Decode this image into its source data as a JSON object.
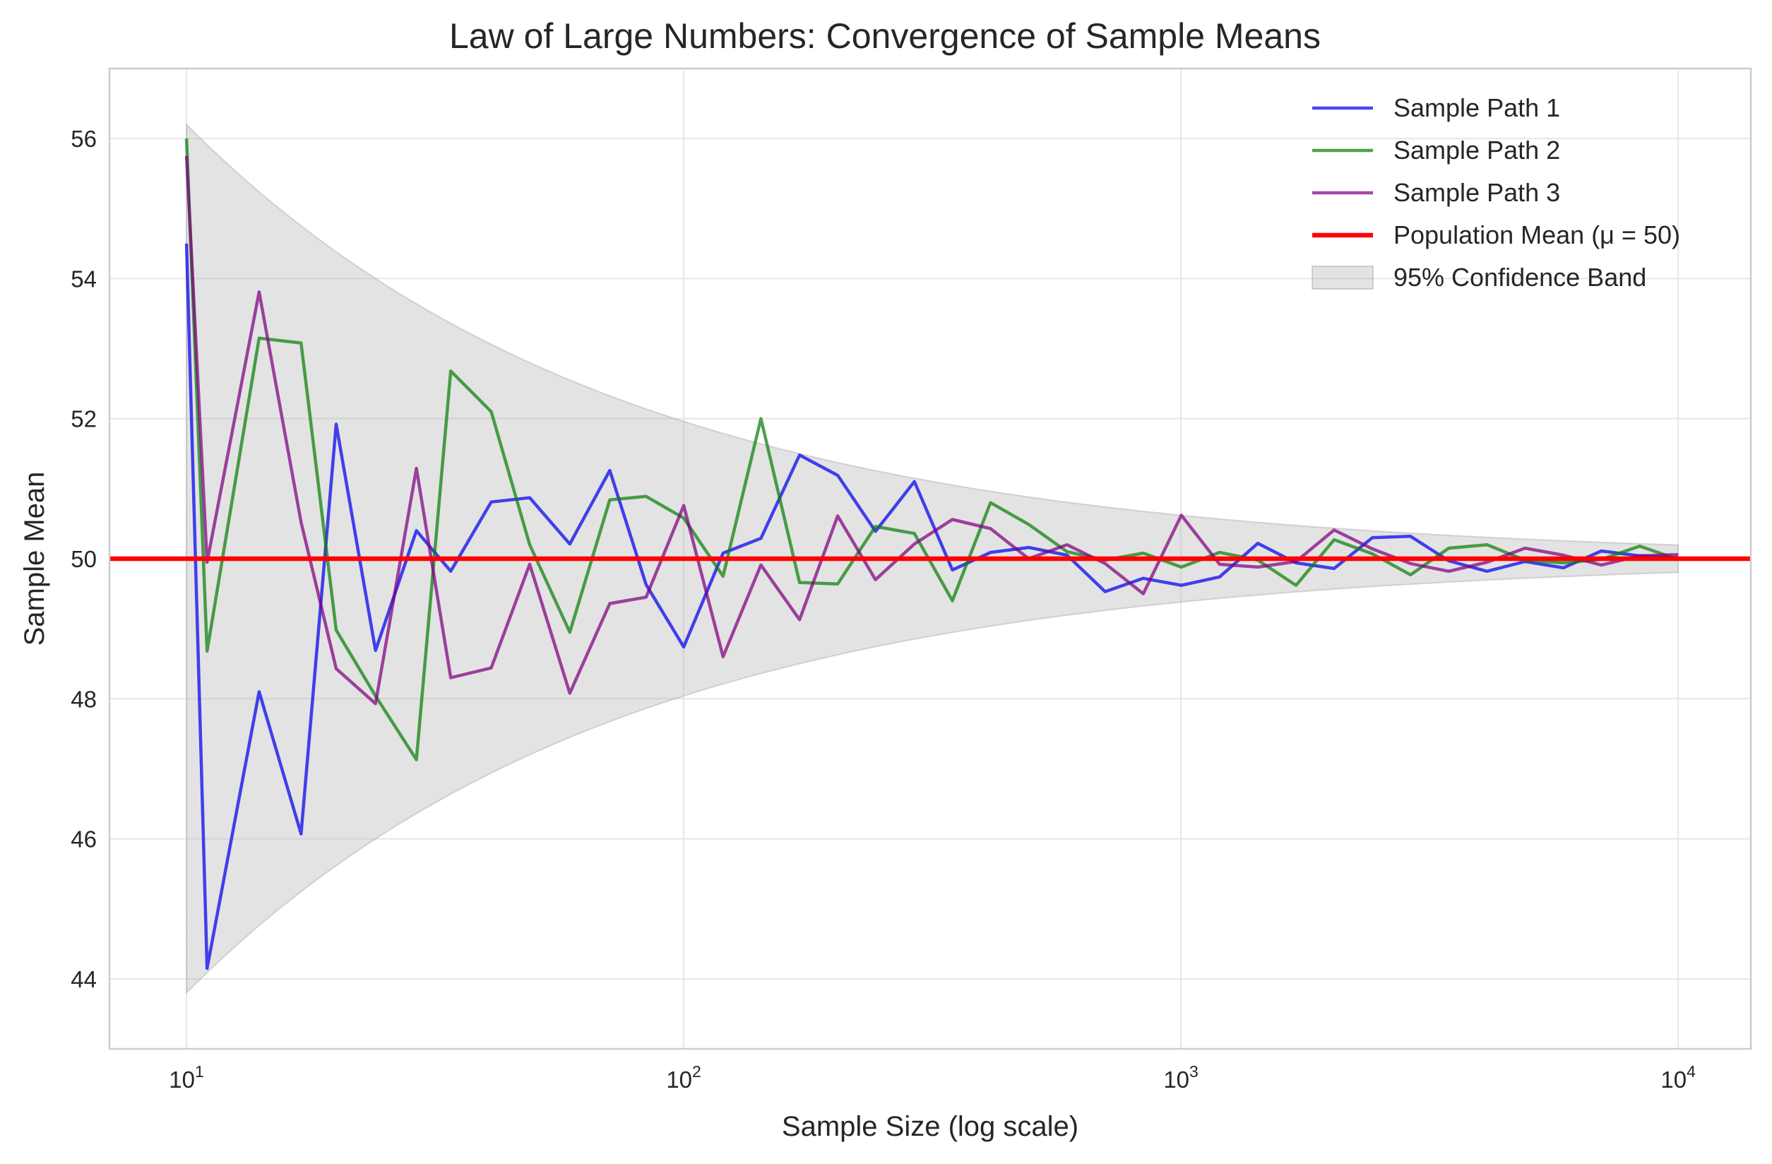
{
  "chart_data": {
    "type": "line",
    "title": "Law of Large Numbers: Convergence of Sample Means",
    "xlabel": "Sample Size (log scale)",
    "ylabel": "Sample Mean",
    "x_scale": "log",
    "xlim": [
      7,
      14000
    ],
    "ylim": [
      43.0,
      57.0
    ],
    "x_ticks": [
      {
        "value": 10,
        "base": "10",
        "exp": "1"
      },
      {
        "value": 100,
        "base": "10",
        "exp": "2"
      },
      {
        "value": 1000,
        "base": "10",
        "exp": "3"
      },
      {
        "value": 10000,
        "base": "10",
        "exp": "4"
      }
    ],
    "y_ticks": [
      44,
      46,
      48,
      50,
      52,
      54,
      56
    ],
    "grid": true,
    "legend_position": "top-right",
    "x": [
      10,
      11,
      14,
      17,
      20,
      24,
      29,
      34,
      41,
      49,
      59,
      71,
      84,
      100,
      120,
      143,
      171,
      204,
      243,
      291,
      347,
      414,
      494,
      590,
      704,
      840,
      1002,
      1196,
      1428,
      1704,
      2033,
      2427,
      2896,
      3456,
      4125,
      4923,
      5875,
      7011,
      8367,
      10000
    ],
    "series": [
      {
        "name": "Sample Path 1",
        "color": "#0000ee",
        "values": [
          54.5,
          44.15,
          48.1,
          46.07,
          51.92,
          48.69,
          50.4,
          49.82,
          50.81,
          50.87,
          50.21,
          51.26,
          49.63,
          48.74,
          50.08,
          50.29,
          51.48,
          51.19,
          50.39,
          51.1,
          49.84,
          50.09,
          50.16,
          50.05,
          49.53,
          49.72,
          49.62,
          49.74,
          50.22,
          49.94,
          49.86,
          50.3,
          50.32,
          49.97,
          49.82,
          49.96,
          49.87,
          50.11,
          50.04,
          50.01
        ]
      },
      {
        "name": "Sample Path 2",
        "color": "#0a7f0a",
        "values": [
          56.0,
          48.68,
          53.15,
          53.08,
          48.98,
          48.04,
          47.13,
          52.68,
          52.1,
          50.2,
          48.95,
          50.84,
          50.89,
          50.58,
          49.75,
          52.0,
          49.66,
          49.64,
          50.46,
          50.36,
          49.4,
          50.8,
          50.49,
          50.1,
          49.98,
          50.08,
          49.88,
          50.09,
          49.98,
          49.62,
          50.27,
          50.07,
          49.77,
          50.15,
          50.2,
          49.98,
          49.94,
          49.99,
          50.18,
          49.99
        ]
      },
      {
        "name": "Sample Path 3",
        "color": "#800080",
        "values": [
          55.75,
          49.95,
          53.81,
          50.52,
          48.43,
          47.93,
          51.29,
          48.3,
          48.44,
          49.92,
          48.08,
          49.36,
          49.45,
          50.76,
          48.6,
          49.91,
          49.13,
          50.61,
          49.7,
          50.21,
          50.56,
          50.43,
          50.0,
          50.2,
          49.93,
          49.5,
          50.62,
          49.92,
          49.88,
          49.96,
          50.41,
          50.14,
          49.93,
          49.82,
          49.95,
          50.15,
          50.05,
          49.91,
          50.04,
          50.06
        ]
      }
    ],
    "reference_line": {
      "name": "Population Mean (μ = 50)",
      "value": 50,
      "color": "#ff0000"
    },
    "band": {
      "name": "95% Confidence Band",
      "center": 50,
      "half_width_formula": "19.6 / sqrt(n)",
      "color": "#b0b0b0"
    }
  }
}
